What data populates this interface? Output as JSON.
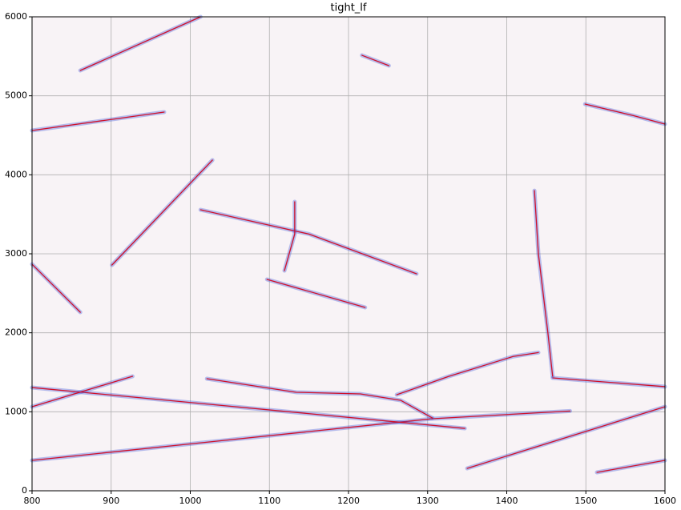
{
  "chart_data": {
    "type": "tracks",
    "title": "tight_lf",
    "xlim": [
      800,
      1600
    ],
    "ylim": [
      0,
      6000
    ],
    "xticks": [
      800,
      900,
      1000,
      1100,
      1200,
      1300,
      1400,
      1500,
      1600
    ],
    "yticks": [
      0,
      1000,
      2000,
      3000,
      4000,
      5000,
      6000
    ],
    "grid": true,
    "color": "#d0102a",
    "halo_color": "#3a4fd8",
    "tracks": [
      {
        "x": [
          861,
          1013
        ],
        "y": [
          5321,
          6000
        ]
      },
      {
        "x": [
          800,
          967
        ],
        "y": [
          4561,
          4794
        ]
      },
      {
        "x": [
          901,
          1028
        ],
        "y": [
          2858,
          4186
        ]
      },
      {
        "x": [
          1013,
          1150,
          1286
        ],
        "y": [
          3557,
          3250,
          2747
        ]
      },
      {
        "x": [
          1097,
          1221
        ],
        "y": [
          2676,
          2321
        ]
      },
      {
        "x": [
          800,
          861
        ],
        "y": [
          2868,
          2260
        ]
      },
      {
        "x": [
          800,
          1306,
          1480
        ],
        "y": [
          385,
          912,
          1010
        ]
      },
      {
        "x": [
          800,
          1347
        ],
        "y": [
          1307,
          790
        ]
      },
      {
        "x": [
          800,
          927
        ],
        "y": [
          1064,
          1449
        ]
      },
      {
        "x": [
          1021,
          1134,
          1215,
          1266,
          1306
        ],
        "y": [
          1419,
          1247,
          1226,
          1145,
          922
        ]
      },
      {
        "x": [
          1261,
          1327,
          1408,
          1440
        ],
        "y": [
          1216,
          1449,
          1700,
          1750
        ]
      },
      {
        "x": [
          1350,
          1600
        ],
        "y": [
          284,
          1064
        ]
      },
      {
        "x": [
          1514,
          1600
        ],
        "y": [
          233,
          385
        ]
      },
      {
        "x": [
          1458,
          1600
        ],
        "y": [
          1429,
          1318
        ]
      },
      {
        "x": [
          1119,
          1132,
          1132
        ],
        "y": [
          2787,
          3250,
          3659
        ]
      },
      {
        "x": [
          1217,
          1251
        ],
        "y": [
          5513,
          5382
        ]
      },
      {
        "x": [
          1499,
          1560,
          1600
        ],
        "y": [
          4895,
          4750,
          4642
        ]
      },
      {
        "x": [
          1435,
          1440,
          1452,
          1458
        ],
        "y": [
          3800,
          3000,
          2000,
          1450
        ]
      }
    ]
  }
}
